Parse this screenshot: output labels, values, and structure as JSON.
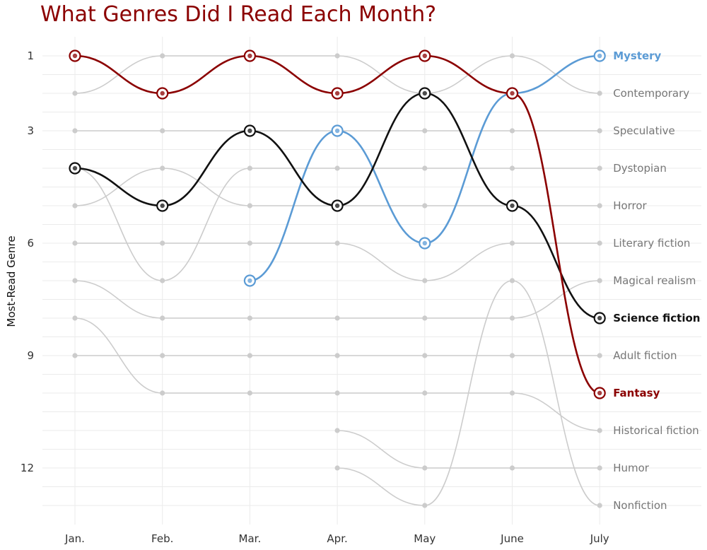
{
  "chart_data": {
    "type": "line",
    "subtype": "bump",
    "title": "What Genres Did I Read Each Month?",
    "xlabel": "",
    "ylabel": "Most-Read Genre",
    "categories": [
      "Jan.",
      "Feb.",
      "Mar.",
      "Apr.",
      "May",
      "June",
      "July"
    ],
    "y_ticks": [
      1,
      3,
      6,
      9,
      12
    ],
    "ylim": [
      13.5,
      0.5
    ],
    "y_reversed": true,
    "grid": true,
    "background_color": "#cccccc",
    "series": [
      {
        "name": "Mystery",
        "values": [
          null,
          null,
          7,
          3,
          6,
          2,
          1
        ],
        "color": "#5b9bd5",
        "highlight": true
      },
      {
        "name": "Contemporary",
        "values": [
          2,
          1,
          1,
          1,
          2,
          1,
          2
        ],
        "color": "#cccccc",
        "highlight": false
      },
      {
        "name": "Speculative",
        "values": [
          3,
          3,
          3,
          3,
          3,
          3,
          3
        ],
        "color": "#cccccc",
        "highlight": false
      },
      {
        "name": "Dystopian",
        "values": [
          4,
          7,
          4,
          4,
          4,
          4,
          4
        ],
        "color": "#cccccc",
        "highlight": false
      },
      {
        "name": "Horror",
        "values": [
          5,
          4,
          5,
          5,
          5,
          5,
          5
        ],
        "color": "#cccccc",
        "highlight": false
      },
      {
        "name": "Literary fiction",
        "values": [
          6,
          6,
          6,
          6,
          7,
          6,
          6
        ],
        "color": "#cccccc",
        "highlight": false
      },
      {
        "name": "Magical realism",
        "values": [
          7,
          8,
          8,
          8,
          8,
          8,
          7
        ],
        "color": "#cccccc",
        "highlight": false
      },
      {
        "name": "Science fiction",
        "values": [
          4,
          5,
          3,
          5,
          2,
          5,
          8
        ],
        "color": "#111111",
        "highlight": true
      },
      {
        "name": "Adult fiction",
        "values": [
          9,
          9,
          9,
          9,
          9,
          9,
          9
        ],
        "color": "#cccccc",
        "highlight": false
      },
      {
        "name": "Fantasy",
        "values": [
          1,
          2,
          1,
          2,
          1,
          2,
          10
        ],
        "color": "#8b0000",
        "highlight": true
      },
      {
        "name": "Historical fiction",
        "values": [
          8,
          10,
          10,
          10,
          10,
          10,
          11
        ],
        "color": "#cccccc",
        "highlight": false
      },
      {
        "name": "Humor",
        "values": [
          null,
          null,
          null,
          11,
          12,
          12,
          12
        ],
        "color": "#cccccc",
        "highlight": false
      },
      {
        "name": "Nonfiction",
        "values": [
          null,
          null,
          null,
          12,
          13,
          7,
          13
        ],
        "color": "#cccccc",
        "highlight": false
      }
    ]
  }
}
